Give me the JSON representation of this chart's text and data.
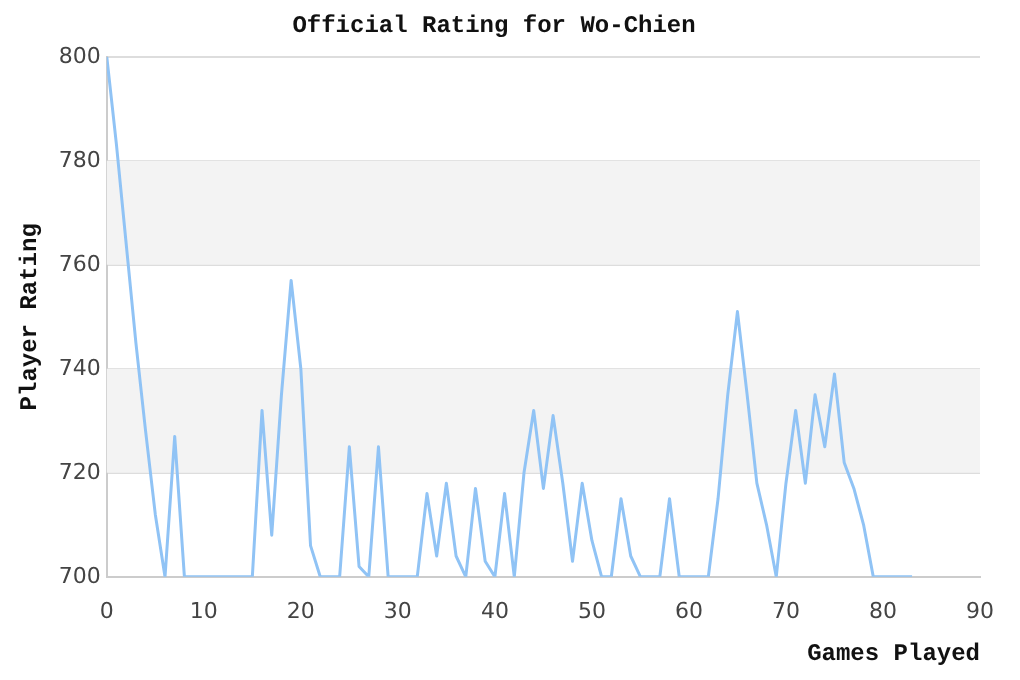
{
  "chart_data": {
    "type": "line",
    "title": "Official Rating for Wo-Chien",
    "xlabel": "Games Played",
    "ylabel": "Player Rating",
    "x": [
      0,
      1,
      2,
      3,
      4,
      5,
      6,
      7,
      8,
      9,
      10,
      11,
      12,
      13,
      14,
      15,
      16,
      17,
      18,
      19,
      20,
      21,
      22,
      23,
      24,
      25,
      26,
      27,
      28,
      29,
      30,
      31,
      32,
      33,
      34,
      35,
      36,
      37,
      38,
      39,
      40,
      41,
      42,
      43,
      44,
      45,
      46,
      47,
      48,
      49,
      50,
      51,
      52,
      53,
      54,
      55,
      56,
      57,
      58,
      59,
      60,
      61,
      62,
      63,
      64,
      65,
      66,
      67,
      68,
      69,
      70,
      71,
      72,
      73,
      74,
      75,
      76,
      77,
      78,
      79,
      80,
      81,
      82,
      83
    ],
    "series": [
      {
        "color": "#90c3f5",
        "values": [
          800,
          783,
          764,
          745,
          728,
          712,
          700,
          727,
          700,
          700,
          700,
          700,
          700,
          700,
          700,
          700,
          732,
          708,
          735,
          757,
          740,
          706,
          700,
          700,
          700,
          725,
          702,
          700,
          725,
          700,
          700,
          700,
          700,
          716,
          704,
          718,
          704,
          700,
          717,
          703,
          700,
          716,
          700,
          720,
          732,
          717,
          731,
          718,
          703,
          718,
          707,
          700,
          700,
          715,
          704,
          700,
          700,
          700,
          715,
          700,
          700,
          700,
          700,
          715,
          735,
          751,
          735,
          718,
          710,
          700,
          718,
          732,
          718,
          735,
          725,
          739,
          722,
          717,
          710,
          700,
          700,
          700,
          700,
          700
        ]
      }
    ],
    "xlim": [
      0,
      90
    ],
    "xticks": [
      0,
      10,
      20,
      30,
      40,
      50,
      60,
      70,
      80,
      90
    ],
    "ylim": [
      700,
      800
    ],
    "yticks": [
      700,
      720,
      740,
      760,
      780,
      800
    ],
    "grid": "y",
    "legend": false,
    "marker": "none",
    "line_style": "solid"
  }
}
